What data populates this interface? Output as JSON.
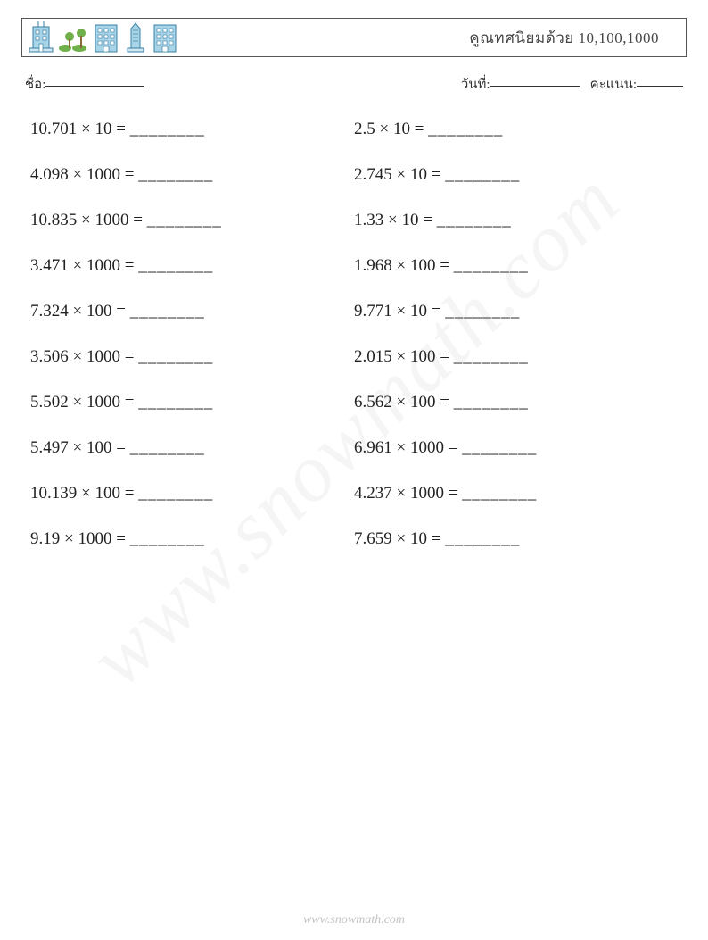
{
  "header": {
    "title": "คูณทศนิยมด้วย 10,100,1000",
    "icon_colors": {
      "building_fill": "#a8d4e8",
      "building_stroke": "#3a7fa3",
      "tree_green": "#6fb04a",
      "tree_trunk": "#8a6a3a"
    }
  },
  "info": {
    "name_label": "ชื่อ:",
    "date_label": "วันที่:",
    "score_label": "คะแนน:",
    "name_line_width": 110,
    "date_line_width": 100,
    "score_line_width": 52
  },
  "blank": "________",
  "problems": {
    "rows": [
      {
        "left": {
          "a": "10.701",
          "b": "10"
        },
        "right": {
          "a": "2.5",
          "b": "10"
        }
      },
      {
        "left": {
          "a": "4.098",
          "b": "1000"
        },
        "right": {
          "a": "2.745",
          "b": "10"
        }
      },
      {
        "left": {
          "a": "10.835",
          "b": "1000"
        },
        "right": {
          "a": "1.33",
          "b": "10"
        }
      },
      {
        "left": {
          "a": "3.471",
          "b": "1000"
        },
        "right": {
          "a": "1.968",
          "b": "100"
        }
      },
      {
        "left": {
          "a": "7.324",
          "b": "100"
        },
        "right": {
          "a": "9.771",
          "b": "10"
        }
      },
      {
        "left": {
          "a": "3.506",
          "b": "1000"
        },
        "right": {
          "a": "2.015",
          "b": "100"
        }
      },
      {
        "left": {
          "a": "5.502",
          "b": "1000"
        },
        "right": {
          "a": "6.562",
          "b": "100"
        }
      },
      {
        "left": {
          "a": "5.497",
          "b": "100"
        },
        "right": {
          "a": "6.961",
          "b": "1000"
        }
      },
      {
        "left": {
          "a": "10.139",
          "b": "100"
        },
        "right": {
          "a": "4.237",
          "b": "1000"
        }
      },
      {
        "left": {
          "a": "9.19",
          "b": "1000"
        },
        "right": {
          "a": "7.659",
          "b": "10"
        }
      }
    ]
  },
  "watermark": "www.snowmath.com",
  "footer": "www.snowmath.com"
}
